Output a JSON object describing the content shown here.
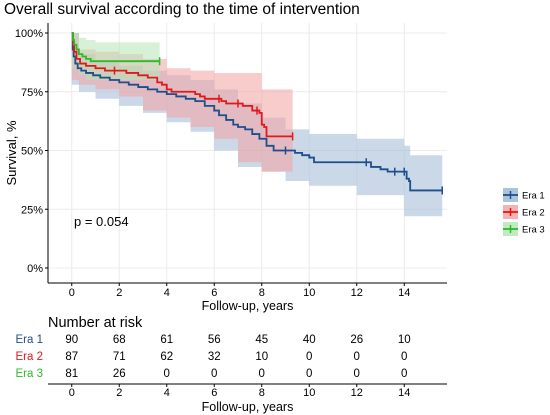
{
  "chart_data": {
    "type": "line",
    "title": "Overall survival according to the time of intervention",
    "xlabel": "Follow-up, years",
    "ylabel": "Survival, %",
    "xlim": [
      -1,
      15.8
    ],
    "ylim": [
      0,
      1
    ],
    "xticks": [
      0,
      2,
      4,
      6,
      8,
      10,
      12,
      14
    ],
    "yticks": [
      0,
      0.25,
      0.5,
      0.75,
      1.0
    ],
    "ytick_labels": [
      "0%",
      "25%",
      "50%",
      "75%",
      "100%"
    ],
    "grid": true,
    "annotation": "p = 0.054",
    "legend_position": "right",
    "series": [
      {
        "name": "Era 1",
        "color": "#1F4E8C",
        "fill": "#9FB8D6",
        "curve": [
          [
            0,
            1.0
          ],
          [
            0.04,
            0.93
          ],
          [
            0.08,
            0.9
          ],
          [
            0.15,
            0.87
          ],
          [
            0.25,
            0.85
          ],
          [
            0.4,
            0.84
          ],
          [
            0.6,
            0.83
          ],
          [
            0.9,
            0.82
          ],
          [
            1.2,
            0.81
          ],
          [
            1.6,
            0.8
          ],
          [
            2.0,
            0.79
          ],
          [
            2.4,
            0.78
          ],
          [
            2.8,
            0.77
          ],
          [
            3.2,
            0.76
          ],
          [
            3.6,
            0.75
          ],
          [
            4.0,
            0.74
          ],
          [
            4.4,
            0.73
          ],
          [
            4.8,
            0.72
          ],
          [
            5.2,
            0.71
          ],
          [
            5.6,
            0.69
          ],
          [
            6.0,
            0.67
          ],
          [
            6.2,
            0.65
          ],
          [
            6.5,
            0.63
          ],
          [
            6.8,
            0.61
          ],
          [
            7.0,
            0.6
          ],
          [
            7.3,
            0.59
          ],
          [
            7.6,
            0.57
          ],
          [
            7.9,
            0.55
          ],
          [
            8.2,
            0.52
          ],
          [
            8.5,
            0.5
          ],
          [
            9.0,
            0.5
          ],
          [
            9.4,
            0.49
          ],
          [
            9.7,
            0.48
          ],
          [
            10.0,
            0.47
          ],
          [
            10.2,
            0.45
          ],
          [
            12.4,
            0.45
          ],
          [
            12.6,
            0.43
          ],
          [
            13.0,
            0.42
          ],
          [
            13.3,
            0.41
          ],
          [
            13.6,
            0.41
          ],
          [
            14.0,
            0.41
          ],
          [
            14.1,
            0.38
          ],
          [
            14.2,
            0.37
          ],
          [
            14.25,
            0.33
          ],
          [
            15.6,
            0.33
          ]
        ],
        "lower": [
          [
            0,
            0.95
          ],
          [
            0.3,
            0.78
          ],
          [
            1,
            0.75
          ],
          [
            2,
            0.72
          ],
          [
            3,
            0.69
          ],
          [
            4,
            0.66
          ],
          [
            5,
            0.62
          ],
          [
            6,
            0.58
          ],
          [
            7,
            0.5
          ],
          [
            8,
            0.43
          ],
          [
            9,
            0.41
          ],
          [
            10,
            0.37
          ],
          [
            12,
            0.35
          ],
          [
            14,
            0.31
          ],
          [
            14.25,
            0.22
          ],
          [
            15.6,
            0.22
          ]
        ],
        "upper": [
          [
            0,
            1.0
          ],
          [
            0.3,
            0.91
          ],
          [
            1,
            0.88
          ],
          [
            2,
            0.86
          ],
          [
            3,
            0.84
          ],
          [
            4,
            0.82
          ],
          [
            5,
            0.8
          ],
          [
            6,
            0.76
          ],
          [
            7,
            0.7
          ],
          [
            8,
            0.64
          ],
          [
            9,
            0.59
          ],
          [
            10,
            0.57
          ],
          [
            12,
            0.55
          ],
          [
            14,
            0.52
          ],
          [
            14.25,
            0.48
          ],
          [
            15.6,
            0.48
          ]
        ]
      },
      {
        "name": "Era 2",
        "color": "#E0191A",
        "fill": "#F4A3A3",
        "curve": [
          [
            0,
            1.0
          ],
          [
            0.05,
            0.95
          ],
          [
            0.1,
            0.92
          ],
          [
            0.2,
            0.89
          ],
          [
            0.35,
            0.87
          ],
          [
            0.6,
            0.86
          ],
          [
            1.0,
            0.85
          ],
          [
            1.4,
            0.84
          ],
          [
            1.8,
            0.84
          ],
          [
            2.3,
            0.83
          ],
          [
            2.8,
            0.82
          ],
          [
            3.2,
            0.81
          ],
          [
            3.6,
            0.79
          ],
          [
            3.8,
            0.78
          ],
          [
            4.0,
            0.76
          ],
          [
            4.2,
            0.75
          ],
          [
            5.2,
            0.74
          ],
          [
            5.4,
            0.73
          ],
          [
            5.6,
            0.72
          ],
          [
            6.2,
            0.72
          ],
          [
            6.3,
            0.71
          ],
          [
            6.5,
            0.7
          ],
          [
            7.0,
            0.7
          ],
          [
            7.2,
            0.69
          ],
          [
            7.6,
            0.67
          ],
          [
            7.8,
            0.67
          ],
          [
            7.9,
            0.66
          ],
          [
            8.0,
            0.61
          ],
          [
            8.1,
            0.6
          ],
          [
            8.2,
            0.56
          ],
          [
            9.3,
            0.56
          ]
        ],
        "lower": [
          [
            0,
            0.95
          ],
          [
            0.3,
            0.8
          ],
          [
            1,
            0.78
          ],
          [
            2,
            0.76
          ],
          [
            3,
            0.73
          ],
          [
            4,
            0.67
          ],
          [
            5,
            0.64
          ],
          [
            6,
            0.6
          ],
          [
            7,
            0.55
          ],
          [
            8,
            0.45
          ],
          [
            8.2,
            0.41
          ],
          [
            9.3,
            0.41
          ]
        ],
        "upper": [
          [
            0,
            1.0
          ],
          [
            0.3,
            0.93
          ],
          [
            1,
            0.92
          ],
          [
            2,
            0.91
          ],
          [
            3,
            0.89
          ],
          [
            4,
            0.85
          ],
          [
            5,
            0.84
          ],
          [
            6,
            0.83
          ],
          [
            7,
            0.83
          ],
          [
            8,
            0.76
          ],
          [
            8.2,
            0.76
          ],
          [
            9.3,
            0.76
          ]
        ]
      },
      {
        "name": "Era 3",
        "color": "#2EB82E",
        "fill": "#B5E6B5",
        "curve": [
          [
            0,
            1.0
          ],
          [
            0.05,
            0.97
          ],
          [
            0.1,
            0.95
          ],
          [
            0.2,
            0.93
          ],
          [
            0.3,
            0.91
          ],
          [
            0.45,
            0.9
          ],
          [
            0.6,
            0.89
          ],
          [
            0.8,
            0.88
          ],
          [
            3.7,
            0.88
          ]
        ],
        "lower": [
          [
            0,
            0.96
          ],
          [
            0.3,
            0.85
          ],
          [
            0.6,
            0.82
          ],
          [
            1,
            0.8
          ],
          [
            3.7,
            0.8
          ]
        ],
        "upper": [
          [
            0,
            1.0
          ],
          [
            0.3,
            0.98
          ],
          [
            0.6,
            0.97
          ],
          [
            1,
            0.96
          ],
          [
            3.7,
            0.96
          ]
        ]
      }
    ],
    "risk_table": {
      "title": "Number at risk",
      "xlabel": "Follow-up, years",
      "times": [
        0,
        2,
        4,
        6,
        8,
        10,
        12,
        14
      ],
      "rows": [
        {
          "name": "Era 1",
          "color": "#1F4E8C",
          "values": [
            90,
            68,
            61,
            56,
            45,
            40,
            26,
            10
          ]
        },
        {
          "name": "Era 2",
          "color": "#E0191A",
          "values": [
            87,
            71,
            62,
            32,
            10,
            0,
            0,
            0
          ]
        },
        {
          "name": "Era 3",
          "color": "#2EB82E",
          "values": [
            81,
            26,
            0,
            0,
            0,
            0,
            0,
            0
          ]
        }
      ]
    }
  }
}
